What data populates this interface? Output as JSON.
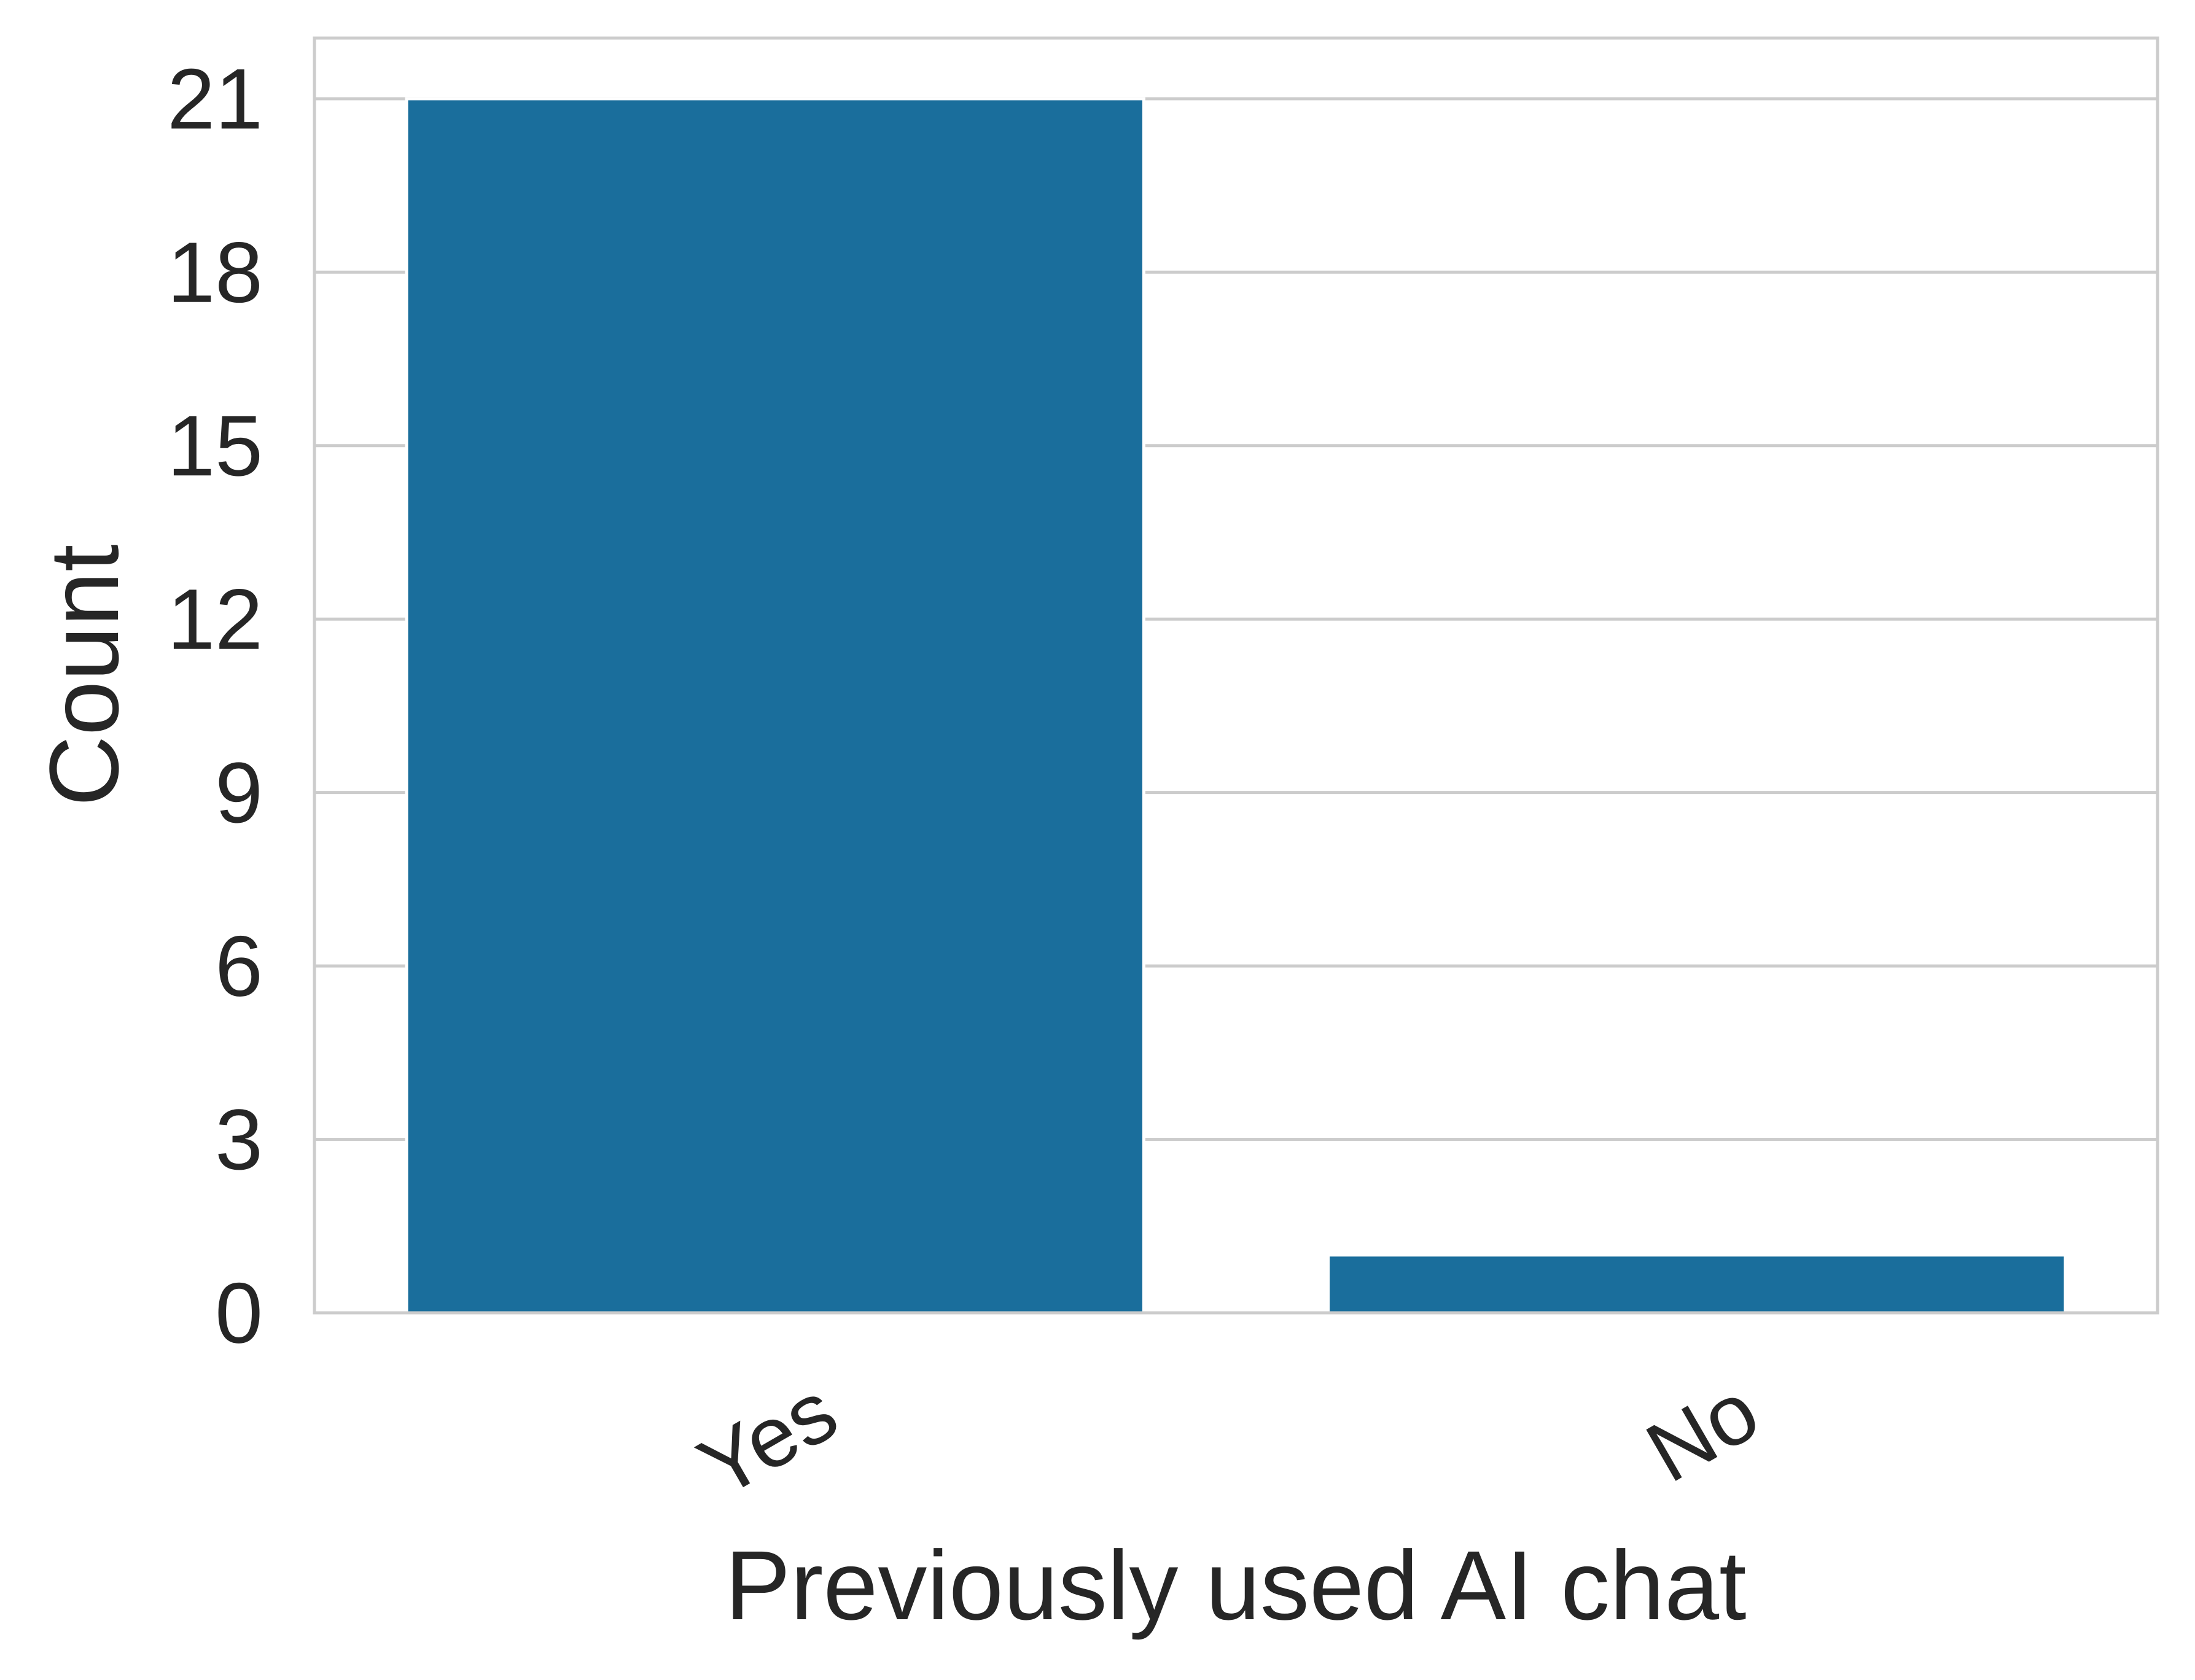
{
  "chart_data": {
    "type": "bar",
    "title": "",
    "xlabel": "Previously used AI chat",
    "ylabel": "Count",
    "categories": [
      "Yes",
      "No"
    ],
    "values": [
      21,
      1
    ],
    "ylim": [
      0,
      22.05
    ],
    "yticks": [
      0,
      3,
      6,
      9,
      12,
      15,
      18,
      21
    ],
    "xtick_rotation": "30 degrees",
    "grid": "horizontal",
    "legend": "none",
    "colors": {
      "bar": "#1a6e9c",
      "grid": "#cccccc",
      "frame": "#cccccc",
      "text": "#262626",
      "background": "#ffffff"
    }
  }
}
